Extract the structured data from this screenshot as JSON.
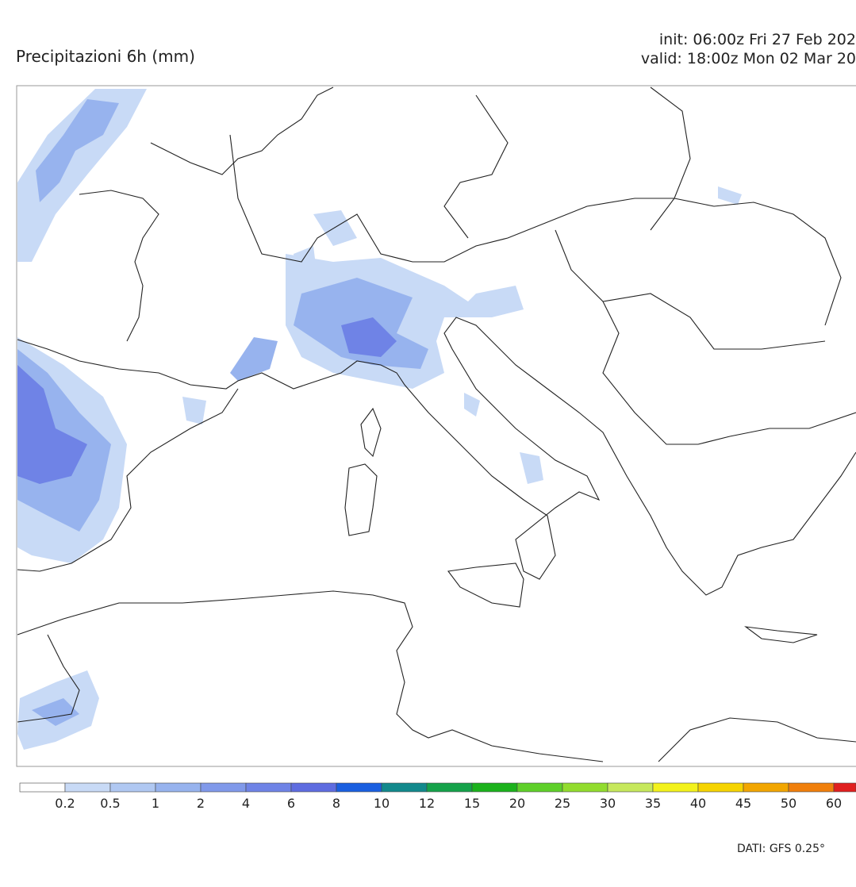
{
  "header": {
    "title": "Precipitazioni 6h (mm)",
    "init": "init: 06:00z Fri 27 Feb 202",
    "valid": "valid: 18:00z Mon 02 Mar 20"
  },
  "legend": {
    "levels": [
      0.2,
      0.5,
      1,
      2,
      4,
      6,
      8,
      10,
      12,
      15,
      20,
      25,
      30,
      35,
      40,
      45,
      50,
      60
    ],
    "colors": [
      "#ffffff",
      "#c8daf6",
      "#b0c8f2",
      "#97b3ee",
      "#8099ea",
      "#6f83e6",
      "#5e6ce0",
      "#1a5fe0",
      "#12898c",
      "#15a24a",
      "#1bb21c",
      "#5fd02a",
      "#92dc2e",
      "#c6e85c",
      "#f3f21c",
      "#f6d400",
      "#f2a600",
      "#f07f0c",
      "#e01f1f"
    ]
  },
  "footer": {
    "source": "DATI: GFS 0.25°"
  }
}
